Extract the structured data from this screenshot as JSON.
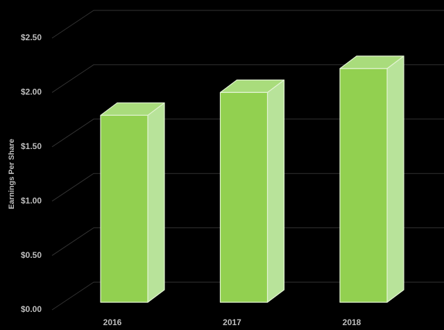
{
  "chart_data": {
    "type": "bar3d",
    "y_label": "Earnings Per Share",
    "categories": [
      "2016",
      "2017",
      "2018"
    ],
    "values": [
      1.72,
      1.93,
      2.15
    ],
    "color": "#92d050",
    "ylim": [
      0,
      2.5
    ],
    "yticks": [
      {
        "value": 0,
        "label": "$0.00"
      },
      {
        "value": 0.5,
        "label": "$0.50"
      },
      {
        "value": 1,
        "label": "$1.00"
      },
      {
        "value": 1.5,
        "label": "$1.50"
      },
      {
        "value": 2,
        "label": "$2.00"
      },
      {
        "value": 2.5,
        "label": "$2.50"
      }
    ],
    "grid": true
  }
}
